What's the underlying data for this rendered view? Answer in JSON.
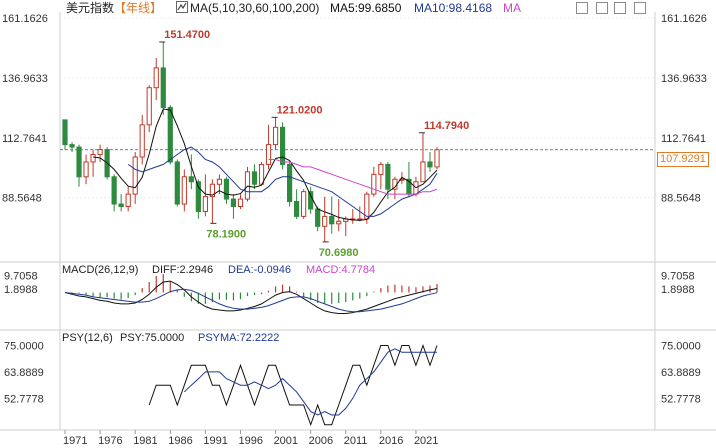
{
  "header": {
    "symbol": "美元指数",
    "period": "【年线】",
    "ma_icon": "candlestick-icon",
    "ma_params": "MA(5,10,30,60,100,200)",
    "ma5": "MA5:99.6850",
    "ma10": "MA10:98.4168",
    "ma_more": "MA",
    "toolbar_icons": [
      "expand-icon",
      "grid-icon",
      "split-icon",
      "layout-icon"
    ]
  },
  "macd": {
    "params": "MACD(26,12,9)",
    "diff": "DIFF:2.2946",
    "dea": "DEA:-0.0946",
    "macd": "MACD:4.7784"
  },
  "psy": {
    "params": "PSY(12,6)",
    "psy": "PSY:75.0000",
    "psyma": "PSYMA:72.2222"
  },
  "current_price": "107.9291",
  "colors": {
    "up": "#c0392b",
    "down": "#2e8b3e",
    "ma5": "#111111",
    "ma10": "#1f3a93",
    "ma30": "#cc44cc",
    "price_line": "#1f5fa8",
    "label_up": "#c0392b",
    "label_down": "#5aa02c",
    "macd_label": "#cc44cc"
  },
  "chart_data": [
    {
      "type": "candlestick",
      "name": "price",
      "y_ticks": [
        "161.1626",
        "136.9633",
        "112.7641",
        "88.5648"
      ],
      "ylim": [
        65.0,
        161.1626
      ],
      "annotations": [
        {
          "text": "151.4700",
          "year": 1985,
          "value": 151.47,
          "kind": "high"
        },
        {
          "text": "121.0200",
          "year": 2001,
          "value": 121.02,
          "kind": "high"
        },
        {
          "text": "114.7940",
          "year": 2022,
          "value": 114.794,
          "kind": "high"
        },
        {
          "text": "78.1900",
          "year": 1992,
          "value": 78.19,
          "kind": "low"
        },
        {
          "text": "70.6980",
          "year": 2008,
          "value": 70.698,
          "kind": "low"
        }
      ],
      "candles": [
        {
          "year": 1971,
          "o": 120,
          "h": 120,
          "l": 108,
          "c": 110
        },
        {
          "year": 1972,
          "o": 110,
          "h": 111,
          "l": 107,
          "c": 109
        },
        {
          "year": 1973,
          "o": 109,
          "h": 110,
          "l": 93,
          "c": 97
        },
        {
          "year": 1974,
          "o": 97,
          "h": 106,
          "l": 94,
          "c": 103
        },
        {
          "year": 1975,
          "o": 103,
          "h": 108,
          "l": 97,
          "c": 106
        },
        {
          "year": 1976,
          "o": 106,
          "h": 110,
          "l": 103,
          "c": 108
        },
        {
          "year": 1977,
          "o": 108,
          "h": 109,
          "l": 96,
          "c": 97
        },
        {
          "year": 1978,
          "o": 97,
          "h": 98,
          "l": 83,
          "c": 86
        },
        {
          "year": 1979,
          "o": 86,
          "h": 90,
          "l": 83,
          "c": 85
        },
        {
          "year": 1980,
          "o": 85,
          "h": 93,
          "l": 83,
          "c": 90
        },
        {
          "year": 1981,
          "o": 90,
          "h": 107,
          "l": 86,
          "c": 105
        },
        {
          "year": 1982,
          "o": 105,
          "h": 122,
          "l": 102,
          "c": 118
        },
        {
          "year": 1983,
          "o": 118,
          "h": 134,
          "l": 115,
          "c": 133
        },
        {
          "year": 1984,
          "o": 133,
          "h": 145,
          "l": 128,
          "c": 141
        },
        {
          "year": 1985,
          "o": 141,
          "h": 151.47,
          "l": 122,
          "c": 125
        },
        {
          "year": 1986,
          "o": 125,
          "h": 126,
          "l": 102,
          "c": 103
        },
        {
          "year": 1987,
          "o": 103,
          "h": 104,
          "l": 85,
          "c": 86
        },
        {
          "year": 1988,
          "o": 86,
          "h": 100,
          "l": 83,
          "c": 97
        },
        {
          "year": 1989,
          "o": 97,
          "h": 106,
          "l": 92,
          "c": 95
        },
        {
          "year": 1990,
          "o": 95,
          "h": 96,
          "l": 80,
          "c": 83
        },
        {
          "year": 1991,
          "o": 83,
          "h": 98,
          "l": 81,
          "c": 89
        },
        {
          "year": 1992,
          "o": 89,
          "h": 96,
          "l": 78.19,
          "c": 94
        },
        {
          "year": 1993,
          "o": 94,
          "h": 98,
          "l": 90,
          "c": 96
        },
        {
          "year": 1994,
          "o": 96,
          "h": 97,
          "l": 86,
          "c": 88
        },
        {
          "year": 1995,
          "o": 88,
          "h": 90,
          "l": 80,
          "c": 85
        },
        {
          "year": 1996,
          "o": 85,
          "h": 90,
          "l": 84,
          "c": 88
        },
        {
          "year": 1997,
          "o": 88,
          "h": 101,
          "l": 87,
          "c": 99
        },
        {
          "year": 1998,
          "o": 99,
          "h": 102,
          "l": 92,
          "c": 94
        },
        {
          "year": 1999,
          "o": 94,
          "h": 103,
          "l": 94,
          "c": 102
        },
        {
          "year": 2000,
          "o": 102,
          "h": 118,
          "l": 100,
          "c": 110
        },
        {
          "year": 2001,
          "o": 110,
          "h": 121.02,
          "l": 108,
          "c": 117
        },
        {
          "year": 2002,
          "o": 117,
          "h": 119,
          "l": 100,
          "c": 102
        },
        {
          "year": 2003,
          "o": 102,
          "h": 103,
          "l": 85,
          "c": 87
        },
        {
          "year": 2004,
          "o": 87,
          "h": 92,
          "l": 80,
          "c": 81
        },
        {
          "year": 2005,
          "o": 81,
          "h": 92,
          "l": 80,
          "c": 91
        },
        {
          "year": 2006,
          "o": 91,
          "h": 93,
          "l": 82,
          "c": 84
        },
        {
          "year": 2007,
          "o": 84,
          "h": 85,
          "l": 75,
          "c": 77
        },
        {
          "year": 2008,
          "o": 77,
          "h": 89,
          "l": 70.698,
          "c": 81
        },
        {
          "year": 2009,
          "o": 81,
          "h": 89,
          "l": 74,
          "c": 78
        },
        {
          "year": 2010,
          "o": 78,
          "h": 88,
          "l": 75,
          "c": 79
        },
        {
          "year": 2011,
          "o": 79,
          "h": 81,
          "l": 73,
          "c": 80
        },
        {
          "year": 2012,
          "o": 80,
          "h": 84,
          "l": 78,
          "c": 80
        },
        {
          "year": 2013,
          "o": 80,
          "h": 85,
          "l": 79,
          "c": 80
        },
        {
          "year": 2014,
          "o": 80,
          "h": 91,
          "l": 78,
          "c": 90
        },
        {
          "year": 2015,
          "o": 90,
          "h": 101,
          "l": 89,
          "c": 98
        },
        {
          "year": 2016,
          "o": 98,
          "h": 103,
          "l": 92,
          "c": 102
        },
        {
          "year": 2017,
          "o": 102,
          "h": 103,
          "l": 88,
          "c": 92
        },
        {
          "year": 2018,
          "o": 92,
          "h": 97,
          "l": 88,
          "c": 96
        },
        {
          "year": 2019,
          "o": 96,
          "h": 99,
          "l": 94,
          "c": 96
        },
        {
          "year": 2020,
          "o": 96,
          "h": 103,
          "l": 89,
          "c": 90
        },
        {
          "year": 2021,
          "o": 90,
          "h": 97,
          "l": 89,
          "c": 95
        },
        {
          "year": 2022,
          "o": 95,
          "h": 114.794,
          "l": 95,
          "c": 103
        },
        {
          "year": 2023,
          "o": 103,
          "h": 107,
          "l": 99,
          "c": 101
        },
        {
          "year": 2024,
          "o": 101,
          "h": 109,
          "l": 100,
          "c": 107.9291
        }
      ],
      "series": [
        {
          "name": "MA5",
          "values": [
            null,
            null,
            null,
            null,
            105,
            104.6,
            102.6,
            100,
            96.4,
            93.2,
            92.6,
            96.8,
            106.2,
            117.4,
            124.4,
            124,
            117.6,
            110.4,
            101.2,
            92.8,
            90,
            89.6,
            91.4,
            90,
            89.6,
            90.2,
            93.2,
            92.8,
            93.6,
            99,
            104.4,
            105,
            103.6,
            99.4,
            95.6,
            89.4,
            84,
            82.8,
            81.8,
            80.6,
            80,
            79.6,
            79.4,
            79.8,
            82.6,
            86.8,
            90.8,
            92.8,
            96.8,
            95.2,
            92.6,
            94,
            96.8,
            99.7
          ]
        },
        {
          "name": "MA10",
          "values": [
            null,
            null,
            null,
            null,
            null,
            null,
            null,
            null,
            null,
            102,
            100,
            99,
            100,
            101,
            102,
            104,
            106,
            108,
            109,
            107,
            104,
            103,
            101,
            98,
            95,
            92,
            91,
            91,
            91,
            93,
            96,
            97,
            97,
            96,
            95,
            94,
            93,
            92,
            91,
            89,
            87,
            85,
            83,
            81,
            81,
            82,
            84,
            86,
            88,
            89,
            90,
            92,
            94,
            98.4
          ]
        },
        {
          "name": "MA30",
          "values": [
            null,
            null,
            null,
            null,
            null,
            null,
            null,
            null,
            null,
            null,
            null,
            null,
            null,
            null,
            null,
            null,
            null,
            null,
            null,
            null,
            null,
            null,
            null,
            null,
            null,
            null,
            null,
            null,
            null,
            104,
            104,
            103,
            103,
            102,
            101,
            101,
            100,
            99,
            98,
            97,
            96,
            95,
            94,
            93,
            92,
            91,
            90,
            90,
            90,
            90,
            90,
            91,
            91,
            92
          ]
        }
      ]
    },
    {
      "type": "bar",
      "name": "MACD",
      "y_ticks": [
        "9.7058",
        "1.8988"
      ],
      "ylim": [
        -18,
        14
      ],
      "values": [
        0,
        0.3,
        -0.5,
        -1.5,
        -2.5,
        -3,
        -2.8,
        -3.5,
        -4,
        -3.2,
        -1.5,
        2.5,
        6,
        9.5,
        10.5,
        6.5,
        1.5,
        -2.5,
        -5,
        -6.5,
        -6.5,
        -5.5,
        -4,
        -4.2,
        -4.5,
        -3.8,
        -2,
        -1.5,
        -1,
        1,
        3.5,
        4.5,
        3.5,
        0.5,
        -2.5,
        -4.5,
        -6,
        -6.5,
        -6.5,
        -6,
        -5.5,
        -4.5,
        -3.5,
        -2,
        0.5,
        2.5,
        4,
        4.5,
        4,
        3.5,
        3,
        3.5,
        4,
        4.8
      ],
      "series": [
        {
          "name": "DIFF",
          "values": [
            0,
            -1,
            -2,
            -2.5,
            -3.5,
            -4.5,
            -5,
            -6,
            -6.5,
            -6.5,
            -6,
            -4,
            -1,
            3,
            6,
            6.5,
            4.5,
            1.5,
            -2.5,
            -5.5,
            -8,
            -9.5,
            -10,
            -10.5,
            -10.5,
            -10,
            -9,
            -8,
            -6.5,
            -4,
            -1.5,
            0,
            0.5,
            -1,
            -3.5,
            -6,
            -8.5,
            -10.5,
            -11.5,
            -12,
            -12,
            -11.5,
            -10.5,
            -9.5,
            -8,
            -6.5,
            -5,
            -3.5,
            -2.5,
            -1.5,
            -0.5,
            0.5,
            1.5,
            2.3
          ]
        },
        {
          "name": "DEA",
          "values": [
            0,
            -0.5,
            -1,
            -1.5,
            -2.5,
            -3,
            -3.5,
            -4,
            -4.5,
            -5,
            -5.5,
            -5.5,
            -5,
            -3.5,
            -1.5,
            0.5,
            1.5,
            1.8,
            1.2,
            -0.5,
            -2.5,
            -4.5,
            -6.5,
            -8,
            -9,
            -9.5,
            -9.5,
            -9,
            -8.5,
            -7.5,
            -6,
            -4.5,
            -3,
            -2.5,
            -2.5,
            -3.5,
            -5,
            -6.5,
            -8,
            -9.5,
            -10.5,
            -11,
            -11,
            -10.5,
            -10,
            -9.5,
            -8.5,
            -7.5,
            -6.5,
            -5,
            -3.5,
            -2,
            -1,
            -0.1
          ]
        }
      ]
    },
    {
      "type": "line",
      "name": "PSY",
      "y_ticks": [
        "75.0000",
        "63.8889",
        "52.7778"
      ],
      "ylim": [
        42,
        79
      ],
      "x_ticks": [
        "1971",
        "1976",
        "1981",
        "1986",
        "1991",
        "1996",
        "2001",
        "2006",
        "2011",
        "2016",
        "2021"
      ],
      "series": [
        {
          "name": "PSY",
          "values": [
            null,
            null,
            null,
            null,
            null,
            null,
            null,
            null,
            null,
            null,
            null,
            null,
            50,
            58.3,
            58.3,
            58.3,
            50,
            58.3,
            66.7,
            66.7,
            66.7,
            58.3,
            58.3,
            50,
            58.3,
            66.7,
            58.3,
            50,
            58.3,
            66.7,
            66.7,
            58.3,
            50,
            50,
            50,
            41.7,
            50,
            41.7,
            41.7,
            50,
            58.3,
            66.7,
            66.7,
            58.3,
            66.7,
            75,
            75,
            66.7,
            75,
            75,
            66.7,
            75,
            66.7,
            75
          ]
        },
        {
          "name": "PSYMA",
          "values": [
            null,
            null,
            null,
            null,
            null,
            null,
            null,
            null,
            null,
            null,
            null,
            null,
            null,
            null,
            null,
            null,
            null,
            55.5,
            58.3,
            61,
            63.9,
            63.9,
            63.9,
            61.1,
            59.7,
            58.3,
            58.3,
            59.7,
            58.3,
            56.9,
            58.3,
            61.1,
            58.3,
            55.5,
            51.4,
            47.2,
            45.8,
            47.2,
            45.8,
            45.8,
            48.6,
            52.8,
            58.3,
            61.1,
            63.9,
            68,
            72.2,
            73.6,
            72.2,
            72.2,
            72.2,
            72.2,
            72.2,
            72.2
          ]
        }
      ]
    }
  ]
}
